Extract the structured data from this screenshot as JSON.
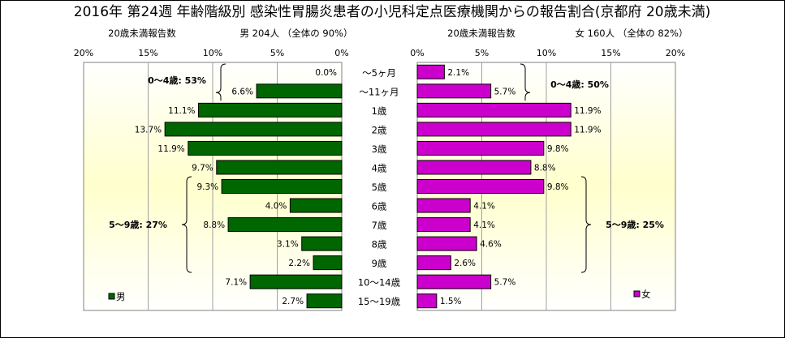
{
  "title": "2016年 第24週 年齢階級別 感染性胃腸炎患者の小児科定点医療機関からの報告割合(京都府 20歳未満)",
  "chart_data": {
    "type": "bar",
    "categories": [
      "～5ヶ月",
      "～11ヶ月",
      "1歳",
      "2歳",
      "3歳",
      "4歳",
      "5歳",
      "6歳",
      "7歳",
      "8歳",
      "9歳",
      "10～14歳",
      "15～19歳"
    ],
    "xlim": [
      0,
      20
    ],
    "ticks": [
      "20%",
      "15%",
      "10%",
      "5%",
      "0%"
    ],
    "ticks_right": [
      "0%",
      "5%",
      "10%",
      "15%",
      "20%"
    ],
    "male": {
      "name": "男",
      "subtitle_left": "20歳未満報告数",
      "subtitle_right": "男  204人 （全体の   90%）",
      "values": [
        0.0,
        6.6,
        11.1,
        13.7,
        11.9,
        9.7,
        9.3,
        4.0,
        8.8,
        3.1,
        2.2,
        7.1,
        2.7
      ],
      "labels": [
        "0.0%",
        "6.6%",
        "11.1%",
        "13.7%",
        "11.9%",
        "9.7%",
        "9.3%",
        "4.0%",
        "8.8%",
        "3.1%",
        "2.2%",
        "7.1%",
        "2.7%"
      ],
      "color": "#006600",
      "annotations": [
        "0～4歳: 53%",
        "5～9歳: 27%"
      ]
    },
    "female": {
      "name": "女",
      "subtitle_left": "20歳未満報告数",
      "subtitle_right": "女  160人 （全体の   82%）",
      "values": [
        2.1,
        5.7,
        11.9,
        11.9,
        9.8,
        8.8,
        9.8,
        4.1,
        4.1,
        4.6,
        2.6,
        5.7,
        1.5
      ],
      "labels": [
        "2.1%",
        "5.7%",
        "11.9%",
        "11.9%",
        "9.8%",
        "8.8%",
        "9.8%",
        "4.1%",
        "4.1%",
        "4.6%",
        "2.6%",
        "5.7%",
        "1.5%"
      ],
      "color": "#cc00cc",
      "annotations": [
        "0～4歳: 50%",
        "5～9歳: 25%"
      ]
    },
    "colors": {
      "plot_bg_top": "#ffffff",
      "plot_bg_mid": "#ffffcc",
      "grid": "#a0a0a0"
    }
  }
}
